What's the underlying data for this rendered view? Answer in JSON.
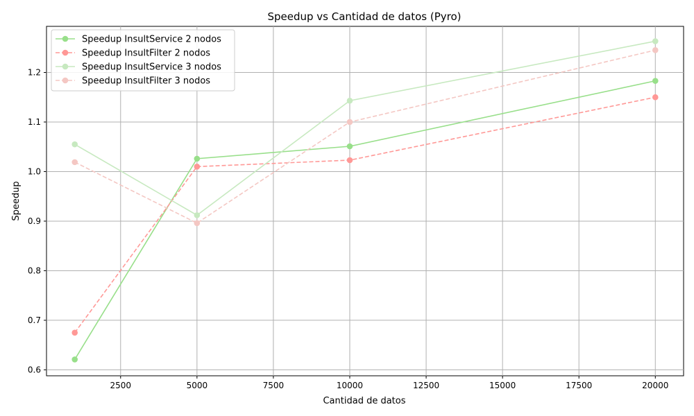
{
  "chart_data": {
    "type": "line",
    "title": "Speedup vs Cantidad de datos (Pyro)",
    "xlabel": "Cantidad de datos",
    "ylabel": "Speedup",
    "x": [
      1000,
      5000,
      10000,
      20000
    ],
    "xlim": [
      75,
      20925
    ],
    "ylim": [
      0.588,
      1.293
    ],
    "xticks": [
      2500,
      5000,
      7500,
      10000,
      12500,
      15000,
      17500,
      20000
    ],
    "xtick_labels": [
      "2500",
      "5000",
      "7500",
      "10000",
      "12500",
      "15000",
      "17500",
      "20000"
    ],
    "yticks": [
      0.6,
      0.7,
      0.8,
      0.9,
      1.0,
      1.1,
      1.2
    ],
    "ytick_labels": [
      "0.6",
      "0.7",
      "0.8",
      "0.9",
      "1.0",
      "1.1",
      "1.2"
    ],
    "grid": true,
    "legend_position": "top-left",
    "series": [
      {
        "name": "Speedup InsultService 2 nodos",
        "values": [
          0.621,
          1.026,
          1.051,
          1.183
        ],
        "color": "#98df8a",
        "dash": "solid"
      },
      {
        "name": "Speedup InsultFilter 2 nodos",
        "values": [
          0.675,
          1.01,
          1.023,
          1.15
        ],
        "color": "#ff9896",
        "dash": "dashed"
      },
      {
        "name": "Speedup InsultService 3 nodos",
        "values": [
          1.055,
          0.912,
          1.143,
          1.263
        ],
        "color": "#c7e9c0",
        "dash": "solid"
      },
      {
        "name": "Speedup InsultFilter 3 nodos",
        "values": [
          1.019,
          0.896,
          1.1,
          1.245
        ],
        "color": "#f4c7c3",
        "dash": "dashed"
      }
    ]
  }
}
